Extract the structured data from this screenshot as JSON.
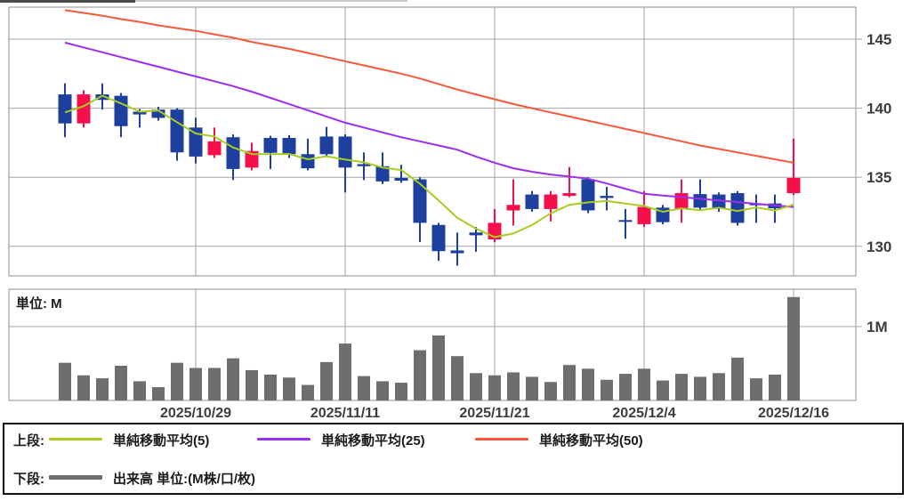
{
  "chart_data": {
    "type": "candlestick",
    "title": "",
    "price_axis": {
      "ticks": [
        145,
        140,
        135,
        130
      ],
      "side": "right",
      "range_top": 147.3,
      "range_bottom": 127.9
    },
    "x_axis": {
      "tick_labels": [
        "2025/10/29",
        "2025/11/11",
        "2025/11/21",
        "2025/12/4",
        "2025/12/16"
      ],
      "tick_candle_indices": [
        7,
        15,
        23,
        31,
        39
      ]
    },
    "volume_axis": {
      "tick_label": "1M",
      "tick_value": 1,
      "unit_label": "単位: M"
    },
    "ohlc": [
      [
        141.0,
        141.8,
        137.9,
        138.9
      ],
      [
        138.9,
        141.3,
        138.6,
        141.0
      ],
      [
        141.0,
        141.8,
        139.9,
        140.6
      ],
      [
        140.9,
        141.1,
        137.9,
        138.7
      ],
      [
        139.75,
        139.95,
        138.6,
        139.55
      ],
      [
        139.9,
        140.1,
        139.1,
        139.3
      ],
      [
        139.9,
        140.0,
        136.2,
        136.8
      ],
      [
        138.6,
        139.3,
        136.0,
        136.5
      ],
      [
        136.6,
        138.6,
        136.4,
        137.6
      ],
      [
        137.9,
        138.1,
        134.8,
        135.6
      ],
      [
        135.7,
        137.5,
        135.5,
        136.9
      ],
      [
        137.85,
        138.0,
        135.6,
        136.77
      ],
      [
        137.85,
        138.05,
        136.4,
        136.67
      ],
      [
        136.67,
        137.8,
        135.5,
        135.65
      ],
      [
        137.95,
        138.65,
        136.5,
        136.67
      ],
      [
        137.95,
        138.1,
        133.9,
        135.7
      ],
      [
        135.95,
        136.8,
        134.8,
        135.8
      ],
      [
        135.8,
        136.8,
        134.5,
        134.7
      ],
      [
        134.95,
        135.9,
        134.6,
        134.75
      ],
      [
        134.85,
        135.0,
        130.3,
        131.7
      ],
      [
        131.55,
        131.7,
        128.95,
        129.65
      ],
      [
        129.7,
        131.0,
        128.6,
        129.5
      ],
      [
        131.0,
        131.4,
        129.6,
        130.8
      ],
      [
        130.5,
        132.7,
        130.3,
        131.7
      ],
      [
        132.6,
        134.85,
        131.5,
        133.0
      ],
      [
        133.75,
        134.0,
        132.5,
        132.7
      ],
      [
        132.7,
        134.0,
        131.8,
        133.75
      ],
      [
        133.65,
        135.75,
        133.55,
        133.85
      ],
      [
        134.85,
        135.0,
        132.4,
        132.6
      ],
      [
        133.65,
        134.3,
        132.6,
        133.5
      ],
      [
        131.9,
        132.7,
        130.55,
        131.8
      ],
      [
        131.6,
        134.0,
        131.4,
        132.85
      ],
      [
        132.8,
        133.0,
        131.6,
        131.75
      ],
      [
        132.7,
        134.85,
        131.7,
        133.85
      ],
      [
        133.78,
        134.85,
        132.6,
        132.8
      ],
      [
        133.75,
        133.9,
        132.5,
        132.7
      ],
      [
        133.85,
        134.0,
        131.5,
        131.7
      ],
      [
        133.1,
        133.75,
        131.7,
        133.0
      ],
      [
        133.1,
        133.75,
        131.7,
        132.75
      ],
      [
        133.85,
        137.8,
        133.7,
        134.95
      ]
    ],
    "volumes_m": [
      0.51,
      0.34,
      0.3,
      0.47,
      0.26,
      0.18,
      0.51,
      0.44,
      0.44,
      0.57,
      0.41,
      0.35,
      0.31,
      0.21,
      0.52,
      0.77,
      0.33,
      0.26,
      0.24,
      0.68,
      0.88,
      0.6,
      0.37,
      0.34,
      0.38,
      0.32,
      0.25,
      0.48,
      0.43,
      0.28,
      0.36,
      0.43,
      0.27,
      0.36,
      0.32,
      0.37,
      0.58,
      0.3,
      0.35,
      1.4
    ],
    "ma5": [
      139.7,
      140.15,
      140.9,
      140.35,
      139.75,
      139.83,
      138.99,
      138.17,
      137.95,
      137.16,
      136.68,
      136.67,
      136.69,
      136.3,
      136.52,
      136.28,
      136.08,
      135.7,
      135.52,
      134.53,
      133.32,
      132.06,
      131.28,
      130.67,
      130.93,
      131.54,
      132.39,
      133.0,
      133.18,
      133.28,
      133.1,
      132.92,
      132.5,
      132.75,
      132.61,
      132.79,
      132.56,
      132.81,
      132.59,
      133.02
    ],
    "ma25": [
      144.75,
      144.4,
      144.05,
      143.7,
      143.35,
      143.0,
      142.65,
      142.3,
      141.95,
      141.6,
      141.2,
      140.75,
      140.3,
      139.85,
      139.4,
      138.95,
      138.6,
      138.25,
      137.9,
      137.6,
      137.3,
      137.0,
      136.5,
      136.05,
      135.65,
      135.4,
      135.2,
      135.05,
      134.9,
      134.55,
      134.17,
      133.8,
      133.68,
      133.56,
      133.44,
      133.32,
      133.2,
      133.08,
      132.96,
      132.85
    ],
    "ma50": [
      147.1,
      146.9,
      146.7,
      146.45,
      146.25,
      146.0,
      145.8,
      145.6,
      145.35,
      145.1,
      144.8,
      144.55,
      144.3,
      144.0,
      143.7,
      143.4,
      143.1,
      142.8,
      142.5,
      142.15,
      141.75,
      141.35,
      141.0,
      140.65,
      140.3,
      140.0,
      139.7,
      139.4,
      139.1,
      138.8,
      138.5,
      138.2,
      137.9,
      137.6,
      137.3,
      137.05,
      136.8,
      136.55,
      136.3,
      136.05
    ],
    "colors": {
      "up": "#f5104b",
      "down": "#1d3f9d",
      "ma5": "#a8cc1f",
      "ma25": "#9c2df2",
      "ma50": "#f9593a",
      "volume": "#6e6e6e",
      "grid": "#a5a5a5",
      "border": "#8f8f8f",
      "label": "#3c3c3c"
    }
  },
  "legend": {
    "upper_label": "上段:",
    "lower_label": "下段:",
    "ma_items": [
      {
        "key": "ma5",
        "label": "単純移動平均(5)"
      },
      {
        "key": "ma25",
        "label": "単純移動平均(25)"
      },
      {
        "key": "ma50",
        "label": "単純移動平均(50)"
      }
    ],
    "volume_item": {
      "key": "volume",
      "label": "出来高 単位:(M株/口/枚)"
    }
  }
}
